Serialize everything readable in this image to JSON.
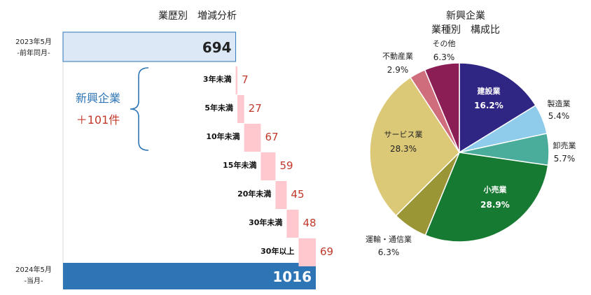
{
  "chart_data": [
    {
      "type": "bar",
      "title": "業歴別　増減分析",
      "start": {
        "label_lines": [
          "2023年5月",
          "-前年同月-"
        ],
        "value": 694
      },
      "end": {
        "label_lines": [
          "2024年5月",
          "-当月-"
        ],
        "value": 1016
      },
      "categories": [
        "3年未満",
        "5年未満",
        "10年未満",
        "15年未満",
        "20年未満",
        "30年未満",
        "30年以上"
      ],
      "values": [
        7,
        27,
        67,
        59,
        45,
        48,
        69
      ],
      "brace_label": "新興企業",
      "brace_value": "＋101件",
      "colors": {
        "start": "#dce8f5",
        "end": "#2e75b6",
        "step": "#ffc7ce",
        "step_text": "#c0392b",
        "brace": "#2e75b6"
      }
    },
    {
      "type": "pie",
      "title_lines": [
        "新興企業",
        "業種別　構成比"
      ],
      "slices": [
        {
          "name": "建設業",
          "value": 16.2,
          "label": "16.2%",
          "color": "#2f2684"
        },
        {
          "name": "製造業",
          "value": 5.4,
          "label": "5.4%",
          "color": "#8fcbeb"
        },
        {
          "name": "卸売業",
          "value": 5.7,
          "label": "5.7%",
          "color": "#4aac9b"
        },
        {
          "name": "小売業",
          "value": 28.9,
          "label": "28.9%",
          "color": "#177a32"
        },
        {
          "name": "運輸・通信業",
          "value": 6.3,
          "label": "6.3%",
          "color": "#9a9535"
        },
        {
          "name": "サービス業",
          "value": 28.3,
          "label": "28.3%",
          "color": "#dcc978"
        },
        {
          "name": "不動産業",
          "value": 2.9,
          "label": "2.9%",
          "color": "#d06d7d"
        },
        {
          "name": "その他",
          "value": 6.3,
          "label": "6.3%",
          "color": "#8b1e54"
        }
      ]
    }
  ]
}
